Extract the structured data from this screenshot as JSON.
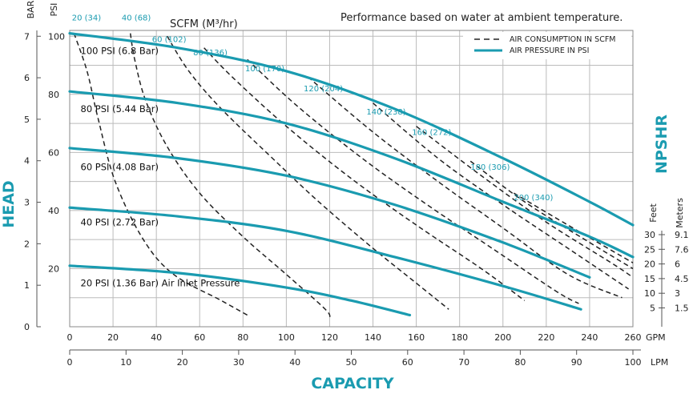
{
  "chart_data": {
    "type": "line",
    "title": "Performance based on water at ambient temperature.",
    "xlabel": "CAPACITY",
    "ylabel": "HEAD",
    "y2label": "NPSHR",
    "units": {
      "gpm": "GPM",
      "lpm": "LPM",
      "bar": "BAR",
      "psi": "PSI",
      "scfm": "SCFM (M³/hr)",
      "feet": "Feet",
      "meters": "Meters"
    },
    "axes": {
      "gpm": {
        "range": [
          0,
          260
        ],
        "ticks": [
          "0",
          "20",
          "40",
          "60",
          "80",
          "100",
          "120",
          "140",
          "160",
          "180",
          "200",
          "220",
          "240",
          "260"
        ]
      },
      "lpm": {
        "range": [
          0,
          100
        ],
        "ticks": [
          "0",
          "10",
          "20",
          "30",
          "40",
          "50",
          "60",
          "70",
          "80",
          "90",
          "100"
        ]
      },
      "psi": {
        "range": [
          0,
          102
        ],
        "ticks": [
          "20",
          "40",
          "60",
          "80",
          "100"
        ]
      },
      "bar": {
        "range": [
          0,
          7
        ],
        "ticks": [
          "0",
          "1",
          "2",
          "3",
          "4",
          "5",
          "6",
          "7"
        ]
      },
      "npshr_feet": [
        "30",
        "25",
        "20",
        "15",
        "10",
        "5"
      ],
      "npshr_meters": [
        "9.1",
        "7.6",
        "6",
        "4.5",
        "3",
        "1.5"
      ]
    },
    "legend": {
      "position": "top-right",
      "items": [
        "AIR CONSUMPTION IN SCFM",
        "AIR PRESSURE IN PSI"
      ]
    },
    "pressure_curves": [
      {
        "label": "100 PSI (6.8 Bar)",
        "points": [
          [
            0,
            101
          ],
          [
            50,
            96
          ],
          [
            100,
            88
          ],
          [
            150,
            75
          ],
          [
            200,
            58
          ],
          [
            240,
            43
          ],
          [
            260,
            35
          ]
        ]
      },
      {
        "label": "80 PSI (5.44 Bar)",
        "points": [
          [
            0,
            81
          ],
          [
            50,
            77
          ],
          [
            100,
            70
          ],
          [
            150,
            58
          ],
          [
            200,
            43
          ],
          [
            240,
            31
          ],
          [
            260,
            24
          ]
        ]
      },
      {
        "label": "60 PSI (4.08 Bar)",
        "points": [
          [
            0,
            61.5
          ],
          [
            50,
            58
          ],
          [
            100,
            52
          ],
          [
            150,
            42
          ],
          [
            200,
            29
          ],
          [
            240,
            17
          ]
        ]
      },
      {
        "label": "40 PSI (2.72 Bar)",
        "points": [
          [
            0,
            41
          ],
          [
            50,
            38
          ],
          [
            100,
            33
          ],
          [
            150,
            24
          ],
          [
            200,
            14
          ],
          [
            236,
            6
          ]
        ]
      },
      {
        "label": "20 PSI (1.36 Bar) Air Inlet Pressure",
        "points": [
          [
            0,
            21
          ],
          [
            50,
            18.5
          ],
          [
            100,
            13.5
          ],
          [
            130,
            9
          ],
          [
            157,
            4
          ]
        ]
      }
    ],
    "air_consumption_curves": [
      {
        "label": "20 (34)",
        "points": [
          [
            2,
            101
          ],
          [
            8,
            88
          ],
          [
            13,
            72
          ],
          [
            21,
            50
          ],
          [
            34,
            30
          ],
          [
            48,
            18
          ],
          [
            70,
            9
          ],
          [
            82,
            4
          ]
        ]
      },
      {
        "label": "40 (68)",
        "points": [
          [
            28,
            101
          ],
          [
            30,
            92
          ],
          [
            35,
            78
          ],
          [
            45,
            62
          ],
          [
            60,
            46
          ],
          [
            80,
            31
          ],
          [
            100,
            18
          ],
          [
            118,
            6
          ],
          [
            120,
            3
          ]
        ]
      },
      {
        "label": "60 (102)",
        "points": [
          [
            45,
            100
          ],
          [
            55,
            88
          ],
          [
            70,
            75
          ],
          [
            95,
            57
          ],
          [
            115,
            43
          ],
          [
            140,
            27
          ],
          [
            160,
            15
          ],
          [
            175,
            6
          ]
        ]
      },
      {
        "label": "80 (136)",
        "points": [
          [
            62,
            96
          ],
          [
            75,
            86
          ],
          [
            100,
            69
          ],
          [
            130,
            51
          ],
          [
            160,
            35
          ],
          [
            190,
            20
          ],
          [
            210,
            9
          ]
        ]
      },
      {
        "label": "100 (170)",
        "points": [
          [
            82,
            92
          ],
          [
            105,
            76
          ],
          [
            135,
            58
          ],
          [
            165,
            42
          ],
          [
            195,
            27
          ],
          [
            225,
            12
          ],
          [
            235,
            8
          ]
        ]
      },
      {
        "label": "120 (204)",
        "points": [
          [
            110,
            86
          ],
          [
            140,
            67
          ],
          [
            170,
            50
          ],
          [
            200,
            34
          ],
          [
            230,
            18
          ],
          [
            255,
            10
          ]
        ]
      },
      {
        "label": "140 (238)",
        "points": [
          [
            140,
            77
          ],
          [
            170,
            58
          ],
          [
            200,
            42
          ],
          [
            230,
            27
          ],
          [
            258,
            13
          ]
        ]
      },
      {
        "label": "160 (272)",
        "points": [
          [
            160,
            69
          ],
          [
            190,
            52
          ],
          [
            220,
            36
          ],
          [
            250,
            22
          ],
          [
            260,
            17
          ]
        ]
      },
      {
        "label": "180 (306)",
        "points": [
          [
            185,
            57
          ],
          [
            210,
            43
          ],
          [
            240,
            29
          ],
          [
            260,
            20
          ]
        ]
      },
      {
        "label": "200 (340)",
        "points": [
          [
            205,
            46
          ],
          [
            230,
            35
          ],
          [
            260,
            22
          ]
        ]
      }
    ]
  },
  "colors": {
    "pressure": "#1a9bb0",
    "air": "#222222",
    "grid": "#bbbbbb",
    "accent": "#1a9bb0"
  }
}
